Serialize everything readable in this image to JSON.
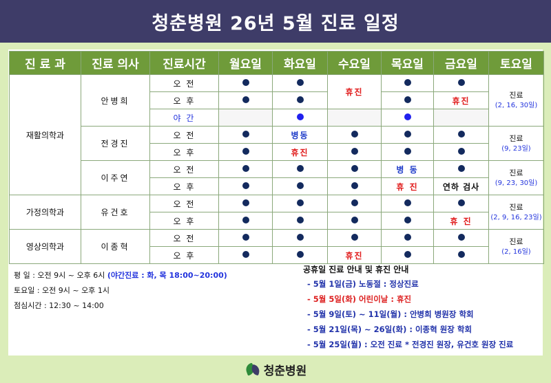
{
  "header": {
    "title": "청춘병원 26년 5월 진료 일정"
  },
  "table": {
    "columns": [
      "진 료 과",
      "진료 의사",
      "진료시간",
      "월요일",
      "화요일",
      "수요일",
      "목요일",
      "금요일",
      "토요일"
    ],
    "slots": {
      "am": "오 전",
      "pm": "오 후",
      "night": "야 간"
    },
    "departments": {
      "rehab": "재활의학과",
      "family": "가정의학과",
      "imaging": "영상의학과"
    },
    "doctors": {
      "d1": "안병희",
      "d2": "전경진",
      "d3": "이주연",
      "d4": "유건호",
      "d5": "이종혁"
    },
    "marks": {
      "closed": "휴진",
      "closed_spaced": "휴 진",
      "dongdong": "병동",
      "dongdong_spaced": "병 동",
      "health_check": "연하 검사"
    },
    "saturday": {
      "d1": {
        "label": "진료",
        "dates": "(2, 16, 30일)"
      },
      "d2": {
        "label": "진료",
        "dates": "(9, 23일)"
      },
      "d3": {
        "label": "진료",
        "dates": "(9, 23, 30일)"
      },
      "d4": {
        "label": "진료",
        "dates": "(2, 9, 16, 23일)"
      },
      "d5": {
        "label": "진료",
        "dates": "(2, 16일)"
      }
    }
  },
  "hours": {
    "weekday": "평    일 : 오전 9시 ~ 오후 6시",
    "night": "(야간진료 : 화, 목 18:00~20:00)",
    "saturday": "토요일 : 오전 9시 ~ 오후 1시",
    "lunch": "점심시간 : 12:30 ~ 14:00"
  },
  "notice": {
    "title": "공휴일 진료 안내 및 휴진 안내",
    "items": [
      {
        "text": "- 5월 1일(금) 노동절 : 정상진료",
        "color": "blue"
      },
      {
        "text": "- 5월 5일(화) 어린이날 : 휴진",
        "color": "red"
      },
      {
        "text": "- 5월 9일(토) ~ 11일(월) : 안병희 병원장 학회",
        "color": "blue"
      },
      {
        "text": "- 5월 21일(목) ~ 26일(화) : 이종혁 원장 학회",
        "color": "blue"
      },
      {
        "text": "- 5월 25일(월) : 오전 진료   * 전경진 원장, 유건호 원장 진료",
        "color": "blue"
      }
    ]
  },
  "footer": {
    "logo_text": "청춘병원"
  },
  "colors": {
    "header_bg": "#3e3c68",
    "frame_bg": "#dbedb9",
    "th_bg": "#6f9b3a",
    "dot": "#132a5e",
    "closed": "#e01818"
  }
}
